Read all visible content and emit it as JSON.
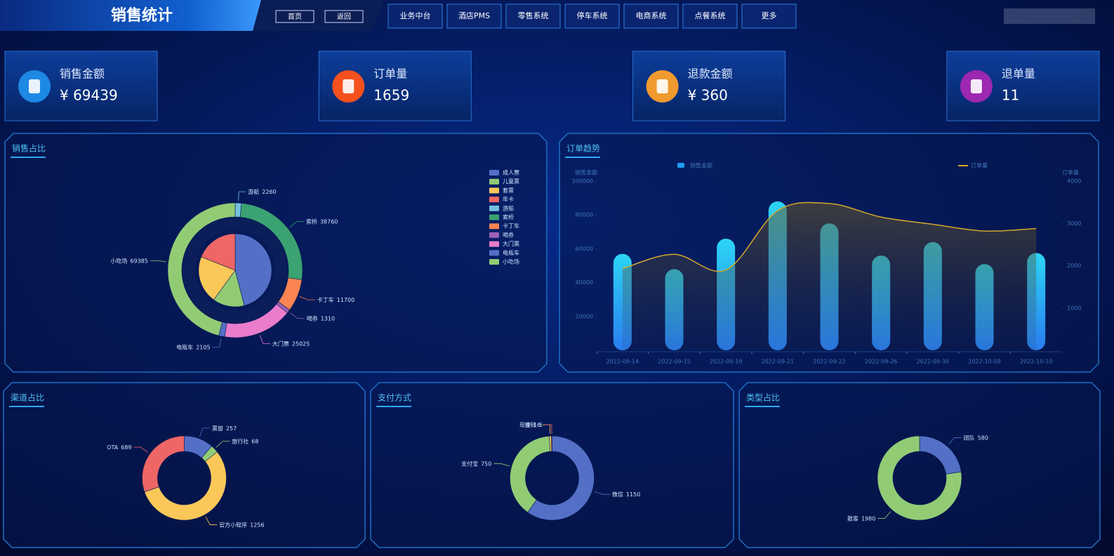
{
  "header": {
    "title": "销售统计",
    "buttons": [
      "首页",
      "返回"
    ],
    "nav": [
      "业务中台",
      "酒店PMS",
      "零售系统",
      "停车系统",
      "电商系统",
      "点餐系统",
      "更多"
    ]
  },
  "kpis": [
    {
      "label": "销售金额",
      "value": "¥ 69439"
    },
    {
      "label": "订单量",
      "value": "1659"
    },
    {
      "label": "退款金额",
      "value": "¥ 360"
    },
    {
      "label": "退单量",
      "value": "11"
    }
  ],
  "chart_data": [
    {
      "type": "pie",
      "title": "销售占比",
      "legend": "top-right",
      "series": [
        {
          "categories": [
            "成人票",
            "儿童票",
            "套票",
            "年卡"
          ],
          "values": [
            46,
            14,
            21,
            19
          ],
          "colors": [
            "#5470c6",
            "#91cc75",
            "#fac858",
            "#ee6666"
          ],
          "data_labels": false
        },
        {
          "categories": [
            "游船",
            "索桥",
            "卡丁车",
            "喝券",
            "大门票",
            "电瓶车",
            "小吃场"
          ],
          "values": [
            2260,
            38760,
            11700,
            1310,
            25025,
            2105,
            69385
          ],
          "colors": [
            "#73c0de",
            "#3ba272",
            "#fc8452",
            "#9a60b4",
            "#ea7ccc",
            "#5470c6",
            "#91cc75"
          ],
          "data_labels": true
        }
      ]
    },
    {
      "type": "bar",
      "title": "订单趋势",
      "legend": "top",
      "categories": [
        "2022-09-14",
        "2022-09-15",
        "2022-09-19",
        "2022-09-21",
        "2022-09-22",
        "2022-09-26",
        "2022-09-30",
        "2022-10-09",
        "2022-10-10"
      ],
      "y_label": "销售金额",
      "y2_label": "订单量",
      "ylim": [
        0,
        100000
      ],
      "yticks": [
        20000,
        40000,
        60000,
        80000,
        100000
      ],
      "y2lim": [
        0,
        4000
      ],
      "y2ticks": [
        1000,
        2000,
        3000,
        4000
      ],
      "series": [
        {
          "name": "销售金额",
          "type": "bar",
          "color": "#1e9ff2",
          "values": [
            57000,
            48000,
            66000,
            88000,
            75000,
            56000,
            64000,
            51000,
            57500
          ]
        },
        {
          "name": "订单量",
          "type": "line",
          "axis": "y2",
          "color": "#d4a72c",
          "values": [
            1930,
            2270,
            1900,
            3300,
            3470,
            3150,
            2980,
            2820,
            2880
          ]
        }
      ]
    },
    {
      "type": "pie",
      "title": "渠道占比",
      "categories": [
        "票窗",
        "旅行社",
        "官方小程序",
        "OTA"
      ],
      "values": [
        257,
        68,
        1256,
        689
      ],
      "colors": [
        "#5470c6",
        "#91cc75",
        "#fac858",
        "#ee6666"
      ],
      "data_labels": true
    },
    {
      "type": "pie",
      "title": "支付方式",
      "categories": [
        "微信",
        "支付宝",
        "现金",
        "挂账"
      ],
      "values": [
        1150,
        750,
        16,
        5
      ],
      "colors": [
        "#5470c6",
        "#91cc75",
        "#fac858",
        "#ee6666"
      ],
      "data_labels": true
    },
    {
      "type": "pie",
      "title": "类型占比",
      "categories": [
        "团队",
        "散客"
      ],
      "values": [
        580,
        1980
      ],
      "colors": [
        "#5470c6",
        "#91cc75"
      ],
      "data_labels": true
    }
  ]
}
